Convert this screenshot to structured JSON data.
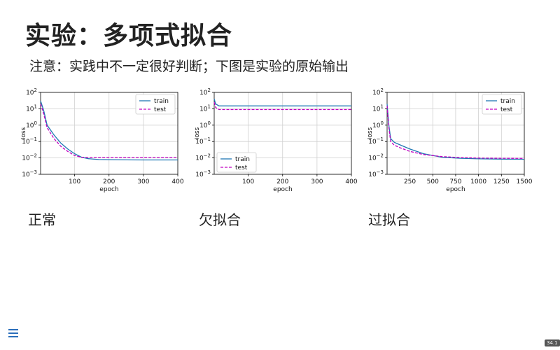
{
  "slide": {
    "title": "实验：多项式拟合",
    "subtitle": "注意：实践中不一定很好判断；下图是实验的原始输出",
    "page_badge": "34.1"
  },
  "colors": {
    "train": "#1f77b4",
    "test": "#c000c0",
    "grid": "#d0d0d0"
  },
  "chart_data": [
    {
      "type": "line",
      "caption": "正常",
      "xlabel": "epoch",
      "ylabel": "loss",
      "xlim": [
        1,
        400
      ],
      "ylim_log10": [
        -3,
        2
      ],
      "xticks": [
        100,
        200,
        300,
        400
      ],
      "yticks": [
        "10^2",
        "10^1",
        "10^0",
        "10^-1",
        "10^-2",
        "10^-3"
      ],
      "legend": {
        "position": "upper right",
        "entries": [
          "train",
          "test"
        ]
      },
      "series": [
        {
          "name": "train",
          "x": [
            1,
            10,
            20,
            40,
            60,
            80,
            100,
            120,
            140,
            170,
            200,
            250,
            300,
            350,
            400
          ],
          "y": [
            30,
            8,
            1.0,
            0.25,
            0.08,
            0.035,
            0.018,
            0.011,
            0.009,
            0.008,
            0.0078,
            0.0076,
            0.0075,
            0.0075,
            0.0075
          ]
        },
        {
          "name": "test",
          "x": [
            1,
            10,
            20,
            40,
            60,
            80,
            100,
            120,
            140,
            170,
            200,
            250,
            300,
            350,
            400
          ],
          "y": [
            20,
            5,
            0.7,
            0.15,
            0.05,
            0.025,
            0.014,
            0.011,
            0.0105,
            0.0105,
            0.0105,
            0.0105,
            0.0105,
            0.0105,
            0.0105
          ]
        }
      ]
    },
    {
      "type": "line",
      "caption": "欠拟合",
      "xlabel": "epoch",
      "ylabel": "loss",
      "xlim": [
        1,
        400
      ],
      "ylim_log10": [
        -3,
        2
      ],
      "xticks": [
        100,
        200,
        300,
        400
      ],
      "yticks": [
        "10^2",
        "10^1",
        "10^0",
        "10^-1",
        "10^-2",
        "10^-3"
      ],
      "legend": {
        "position": "lower left",
        "entries": [
          "train",
          "test"
        ]
      },
      "series": [
        {
          "name": "train",
          "x": [
            1,
            5,
            15,
            30,
            100,
            200,
            300,
            400
          ],
          "y": [
            40,
            20,
            15,
            15,
            15,
            15,
            15,
            15
          ]
        },
        {
          "name": "test",
          "x": [
            1,
            5,
            15,
            30,
            100,
            200,
            300,
            400
          ],
          "y": [
            25,
            12,
            9,
            9,
            9,
            9,
            9,
            9
          ]
        }
      ]
    },
    {
      "type": "line",
      "caption": "过拟合",
      "xlabel": "epoch",
      "ylabel": "loss",
      "xlim": [
        1,
        1500
      ],
      "ylim_log10": [
        -3,
        2
      ],
      "xticks": [
        250,
        500,
        750,
        1000,
        1250,
        1500
      ],
      "yticks": [
        "10^2",
        "10^1",
        "10^0",
        "10^-1",
        "10^-2",
        "10^-3"
      ],
      "legend": {
        "position": "upper right",
        "entries": [
          "train",
          "test"
        ]
      },
      "series": [
        {
          "name": "train",
          "x": [
            1,
            20,
            40,
            80,
            150,
            250,
            400,
            600,
            800,
            1000,
            1250,
            1500
          ],
          "y": [
            20,
            1.0,
            0.15,
            0.09,
            0.06,
            0.035,
            0.018,
            0.011,
            0.0095,
            0.0088,
            0.0085,
            0.0083
          ]
        },
        {
          "name": "test",
          "x": [
            1,
            20,
            40,
            80,
            150,
            250,
            400,
            600,
            800,
            1000,
            1250,
            1500
          ],
          "y": [
            15,
            0.7,
            0.1,
            0.06,
            0.04,
            0.025,
            0.016,
            0.012,
            0.0105,
            0.0098,
            0.0095,
            0.0093
          ]
        }
      ]
    }
  ]
}
